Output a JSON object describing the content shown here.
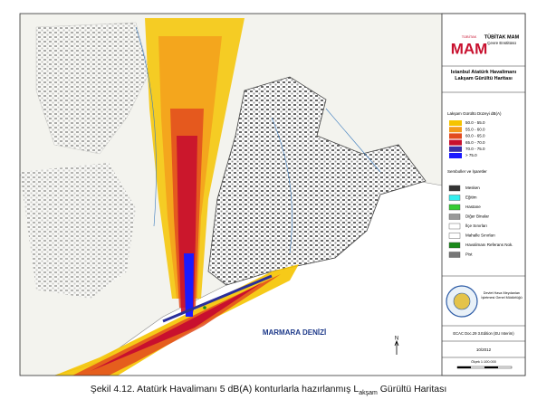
{
  "header": {
    "logo": "MAM",
    "logo_small": "TÜBİTAK",
    "org": "TÜBİTAK MAM",
    "institute": "Çevre Enstitüsü",
    "map_title": "İstanbul Atatürk Havalimanı Lakşam Gürültü Haritası"
  },
  "legend": {
    "noise_title": "Lakşam Gürültü Düzeyi dB(A)",
    "noise_items": [
      {
        "label": "50.0 - 55.0",
        "color": "#f5c400"
      },
      {
        "label": "55.0 - 60.0",
        "color": "#f39a1b"
      },
      {
        "label": "60.0 - 65.0",
        "color": "#e24b1f"
      },
      {
        "label": "65.0 - 70.0",
        "color": "#c8102e"
      },
      {
        "label": "70.0 - 75.0",
        "color": "#3a2fa8"
      },
      {
        "label": "> 75.0",
        "color": "#1a1aff"
      }
    ],
    "symbols_title": "Semboller ve İşaretler",
    "symbol_items": [
      {
        "label": "Mesken",
        "color": "#333333"
      },
      {
        "label": "Eğitim",
        "color": "#33f0f0"
      },
      {
        "label": "Hastane",
        "color": "#33cc33"
      },
      {
        "label": "Diğer Binalar",
        "color": "#999999"
      },
      {
        "label": "İlçe Sınırları",
        "color": "#ffffff"
      },
      {
        "label": "Mahalle Sınırları",
        "color": "#ffffff"
      },
      {
        "label": "Havalimanı Referans Nok.",
        "color": "#1a8a1a"
      },
      {
        "label": "Pist",
        "color": "#777777"
      }
    ]
  },
  "footer": {
    "agency": "Devlet Hava Meydanları İşletmesi Genel Müdürlüğü",
    "method": "ECAC Doc.29 3.Edition (EU Interim)",
    "date": "10/2012",
    "scale": "Ölçek 1:100.000"
  },
  "map": {
    "sea_label": "MARMARA DENİZİ",
    "north": "N"
  },
  "caption": {
    "before": "Şekil 4.12. Atatürk Havalimanı 5 dB(A) konturlarla hazırlanmış L",
    "sub": "akşam",
    "after": " Gürültü Haritası"
  }
}
